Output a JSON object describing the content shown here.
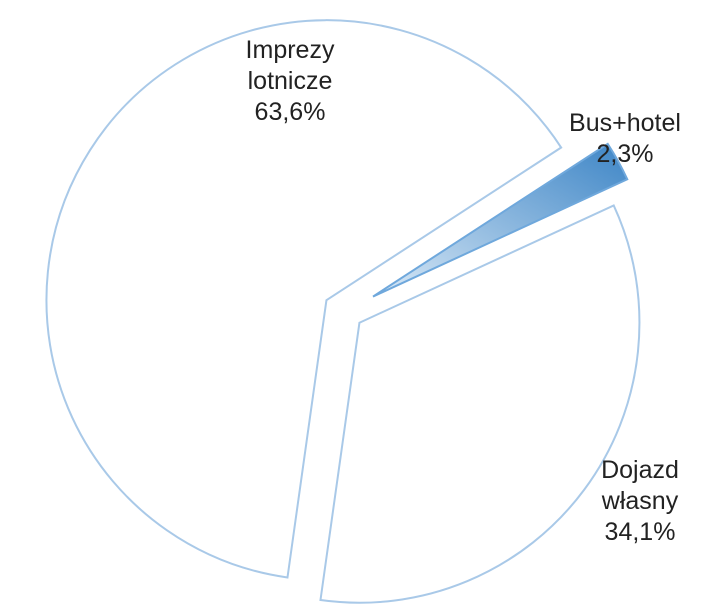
{
  "chart_data": {
    "type": "pie",
    "categories": [
      "Imprezy lotnicze",
      "Bus+hotel",
      "Dojazd własny"
    ],
    "values": [
      63.6,
      2.3,
      34.1
    ],
    "value_labels": [
      "63,6%",
      "2,3%",
      "34,1%"
    ],
    "colors": [
      "#ffffff",
      "#6fa8dc",
      "#ffffff"
    ]
  }
}
